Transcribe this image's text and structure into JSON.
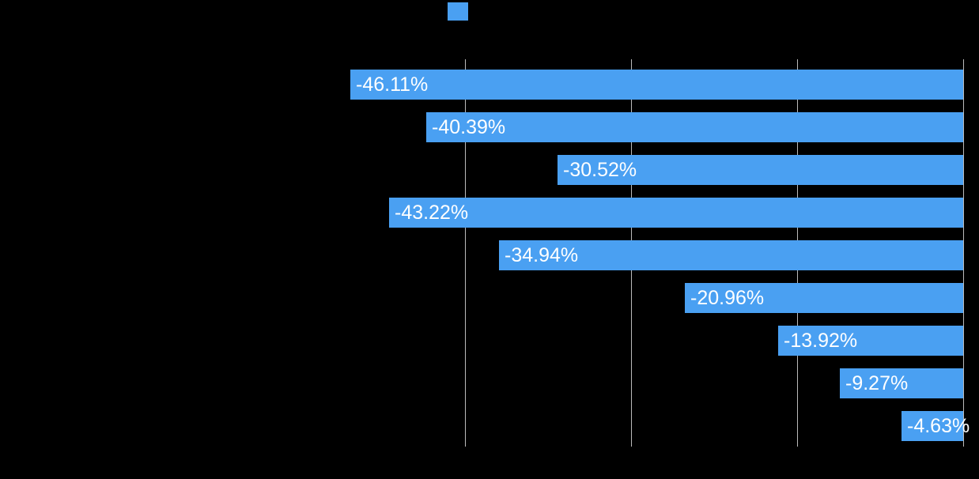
{
  "background_color": "#000000",
  "legend": {
    "position": "top-center",
    "swatch_color": "#4AA0F2"
  },
  "chart_data": {
    "type": "bar",
    "orientation": "horizontal",
    "title": "",
    "xlabel": "",
    "ylabel": "",
    "values": [
      -46.11,
      -40.39,
      -30.52,
      -43.22,
      -34.94,
      -20.96,
      -13.92,
      -9.27,
      -4.63
    ],
    "labels": [
      "-46.11%",
      "-40.39%",
      "-30.52%",
      "-43.22%",
      "-34.94%",
      "-20.96%",
      "-13.92%",
      "-9.27%",
      "-4.63%"
    ],
    "xlim": [
      -50,
      0
    ],
    "xticks": [
      -37.5,
      -25,
      -12.5,
      0
    ],
    "grid": true,
    "zero_line_on_right": true,
    "bar_color": "#4AA0F2",
    "label_color": "#FFFFFF",
    "gridline_color": "#BBBBBB",
    "legend_position": "top-center"
  }
}
